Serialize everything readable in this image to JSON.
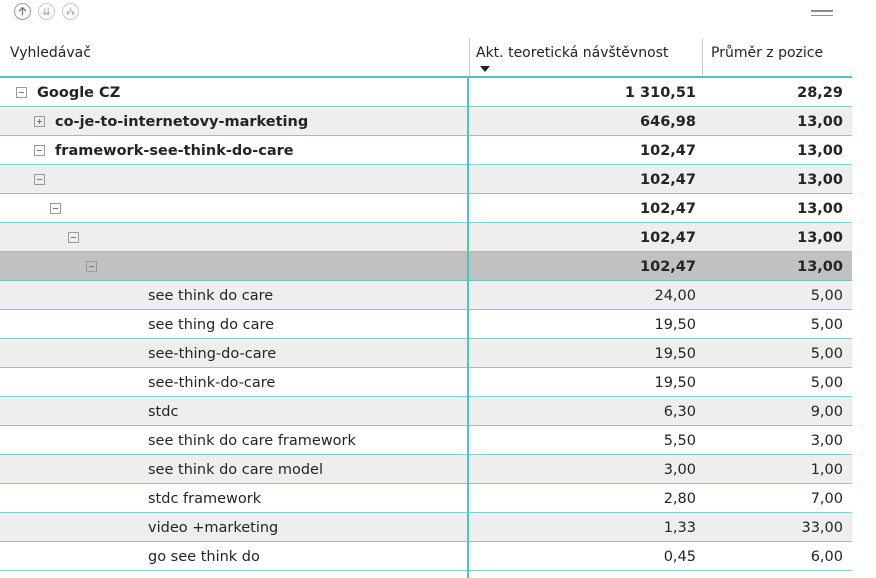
{
  "header": {
    "col1": "Vyhledávač",
    "col2": "Akt. teoretická návštěvnost",
    "col3": "Průměr z pozice"
  },
  "toolbar_icons": [
    "drill-up-icon",
    "expand-all-icon",
    "drill-down-icon",
    "focus-mode-icon"
  ],
  "colors": {
    "accent": "#4fc4c4",
    "row_alt": "#eeeeee",
    "row_selected": "#c1c1c1"
  },
  "rows": [
    {
      "label": "Google CZ",
      "col2": "1 310,51",
      "col3": "28,29",
      "bold": true,
      "expander": "minus",
      "level": 0
    },
    {
      "label": "co-je-to-internetovy-marketing",
      "col2": "646,98",
      "col3": "13,00",
      "bold": true,
      "expander": "plus",
      "level": 1
    },
    {
      "label": "framework-see-think-do-care",
      "col2": "102,47",
      "col3": "13,00",
      "bold": true,
      "expander": "minus",
      "level": 1
    },
    {
      "label": "",
      "col2": "102,47",
      "col3": "13,00",
      "bold": true,
      "expander": "minus",
      "level": 2
    },
    {
      "label": "",
      "col2": "102,47",
      "col3": "13,00",
      "bold": true,
      "expander": "minus",
      "level": 3
    },
    {
      "label": "",
      "col2": "102,47",
      "col3": "13,00",
      "bold": true,
      "expander": "minus",
      "level": 4
    },
    {
      "label": "",
      "col2": "102,47",
      "col3": "13,00",
      "bold": true,
      "expander": "minus",
      "level": 5
    },
    {
      "label": "see think do care",
      "col2": "24,00",
      "col3": "5,00",
      "bold": false,
      "expander": "",
      "level": 6
    },
    {
      "label": "see thing do care",
      "col2": "19,50",
      "col3": "5,00",
      "bold": false,
      "expander": "",
      "level": 6
    },
    {
      "label": "see-thing-do-care",
      "col2": "19,50",
      "col3": "5,00",
      "bold": false,
      "expander": "",
      "level": 6
    },
    {
      "label": "see-think-do-care",
      "col2": "19,50",
      "col3": "5,00",
      "bold": false,
      "expander": "",
      "level": 6
    },
    {
      "label": "stdc",
      "col2": "6,30",
      "col3": "9,00",
      "bold": false,
      "expander": "",
      "level": 6
    },
    {
      "label": "see think do care framework",
      "col2": "5,50",
      "col3": "3,00",
      "bold": false,
      "expander": "",
      "level": 6
    },
    {
      "label": "see think do care model",
      "col2": "3,00",
      "col3": "1,00",
      "bold": false,
      "expander": "",
      "level": 6
    },
    {
      "label": "stdc framework",
      "col2": "2,80",
      "col3": "7,00",
      "bold": false,
      "expander": "",
      "level": 6
    },
    {
      "label": "video +marketing",
      "col2": "1,33",
      "col3": "33,00",
      "bold": false,
      "expander": "",
      "level": 6
    },
    {
      "label": "go see think do",
      "col2": "0,45",
      "col3": "6,00",
      "bold": false,
      "expander": "",
      "level": 6
    }
  ]
}
